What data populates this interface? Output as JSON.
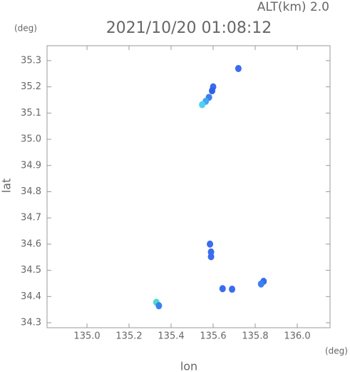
{
  "chart_data": {
    "type": "scatter",
    "title": "2021/10/20 01:08:12",
    "subtitle": "ALT(km) 2.0",
    "y_unit": "(deg)",
    "x_unit": "(deg)",
    "x_label": "lon",
    "y_label": "lat",
    "x": [
      135.72,
      135.6,
      135.595,
      135.58,
      135.565,
      135.548,
      135.585,
      135.59,
      135.59,
      135.645,
      135.69,
      135.84,
      135.828,
      135.33,
      135.342
    ],
    "values": [
      35.27,
      35.2,
      35.185,
      35.16,
      35.145,
      35.132,
      34.6,
      34.57,
      34.552,
      34.43,
      34.428,
      34.458,
      34.448,
      34.378,
      34.365
    ],
    "colors": [
      "#3a6cf0",
      "#3a6cf0",
      "#3060e8",
      "#3a80f0",
      "#40a8f0",
      "#50d0f0",
      "#3a6cf0",
      "#3a6cf0",
      "#3a6cf0",
      "#3a6cf0",
      "#3a6cf0",
      "#3a6cf0",
      "#3a80f0",
      "#50d8c8",
      "#3a80f0"
    ],
    "xlim": [
      134.81,
      136.156
    ],
    "ylim": [
      34.281,
      35.357
    ],
    "xticks": [
      {
        "value": 135,
        "label": "135.0"
      },
      135.2,
      135.4,
      135.6,
      135.8,
      {
        "value": 136,
        "label": "136.0"
      }
    ],
    "yticks": [
      34.3,
      34.4,
      34.5,
      34.6,
      34.7,
      34.8,
      34.9,
      {
        "value": 35,
        "label": "35.0"
      },
      35.1,
      35.2,
      35.3
    ]
  }
}
